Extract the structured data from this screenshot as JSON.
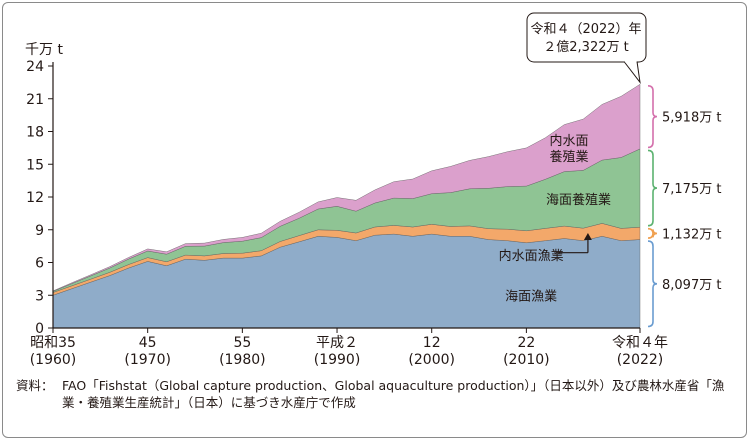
{
  "colors": {
    "marine_fishery": "#8facc9",
    "inland_fishery": "#f3a86a",
    "marine_aquaculture": "#8fc494",
    "inland_aquaculture": "#dba0cc",
    "brace_pink": "#d470ac",
    "brace_green": "#5cb270",
    "brace_orange": "#f0a050",
    "brace_blue": "#6a9cd0",
    "axis": "#231815"
  },
  "chart_data": {
    "type": "area",
    "stacked": true,
    "unit_label": "千万 t",
    "ylim": [
      0,
      24
    ],
    "yticks": [
      "0",
      "3",
      "6",
      "9",
      "12",
      "15",
      "18",
      "21",
      "24"
    ],
    "xlim": [
      1960,
      2022
    ],
    "xticks": [
      {
        "year": 1960,
        "era": "昭和35",
        "western": "(1960)"
      },
      {
        "year": 1970,
        "era": "45",
        "western": "(1970)"
      },
      {
        "year": 1980,
        "era": "55",
        "western": "(1980)"
      },
      {
        "year": 1990,
        "era": "平成２",
        "western": "(1990)"
      },
      {
        "year": 2000,
        "era": "12",
        "western": "(2000)"
      },
      {
        "year": 2010,
        "era": "22",
        "western": "(2010)"
      },
      {
        "year": 2022,
        "era": "令和４年",
        "western": "(2022)"
      }
    ],
    "years": [
      1960,
      1962,
      1964,
      1966,
      1968,
      1970,
      1972,
      1974,
      1976,
      1978,
      1980,
      1982,
      1984,
      1986,
      1988,
      1990,
      1992,
      1994,
      1996,
      1998,
      2000,
      2002,
      2004,
      2006,
      2008,
      2010,
      2012,
      2014,
      2016,
      2018,
      2020,
      2022
    ],
    "series": [
      {
        "name": "海面漁業",
        "key": "marine_fishery",
        "values": [
          3.0,
          3.6,
          4.2,
          4.8,
          5.5,
          6.1,
          5.7,
          6.3,
          6.2,
          6.4,
          6.4,
          6.6,
          7.4,
          7.9,
          8.4,
          8.3,
          8.0,
          8.5,
          8.6,
          8.4,
          8.6,
          8.4,
          8.4,
          8.1,
          8.0,
          7.8,
          8.0,
          8.2,
          8.0,
          8.4,
          8.0,
          8.1
        ]
      },
      {
        "name": "内水面漁業",
        "key": "inland_fishery",
        "values": [
          0.25,
          0.27,
          0.28,
          0.3,
          0.32,
          0.35,
          0.36,
          0.38,
          0.4,
          0.42,
          0.45,
          0.48,
          0.52,
          0.56,
          0.6,
          0.65,
          0.7,
          0.75,
          0.8,
          0.85,
          0.9,
          0.9,
          0.95,
          1.0,
          1.05,
          1.1,
          1.12,
          1.13,
          1.14,
          1.18,
          1.12,
          1.132
        ]
      },
      {
        "name": "海面養殖業",
        "key": "marine_aquaculture",
        "values": [
          0.1,
          0.2,
          0.3,
          0.4,
          0.5,
          0.6,
          0.7,
          0.8,
          0.9,
          1.0,
          1.1,
          1.2,
          1.4,
          1.6,
          1.9,
          2.2,
          2.0,
          2.2,
          2.5,
          2.6,
          2.8,
          3.1,
          3.4,
          3.7,
          3.9,
          4.1,
          4.5,
          5.0,
          5.3,
          5.8,
          6.5,
          7.175
        ]
      },
      {
        "name": "内水面養殖業",
        "key": "inland_aquaculture",
        "values": [
          0.05,
          0.08,
          0.1,
          0.12,
          0.15,
          0.2,
          0.22,
          0.25,
          0.28,
          0.3,
          0.35,
          0.4,
          0.45,
          0.55,
          0.65,
          0.8,
          1.0,
          1.2,
          1.5,
          1.8,
          2.1,
          2.4,
          2.6,
          2.9,
          3.2,
          3.5,
          3.8,
          4.3,
          4.7,
          5.1,
          5.6,
          5.918
        ]
      }
    ],
    "area_labels": [
      {
        "key": "inland_aquaculture",
        "lines": [
          "内水面",
          "養殖業"
        ]
      },
      {
        "key": "marine_aquaculture",
        "lines": [
          "海面養殖業"
        ]
      },
      {
        "key": "inland_fishery",
        "lines": [
          "内水面漁業"
        ]
      },
      {
        "key": "marine_fishery",
        "lines": [
          "海面漁業"
        ]
      }
    ],
    "right_labels": [
      {
        "key": "inland_aquaculture",
        "text": "5,918万 t"
      },
      {
        "key": "marine_aquaculture",
        "text": "7,175万 t"
      },
      {
        "key": "inland_fishery",
        "text": "1,132万 t"
      },
      {
        "key": "marine_fishery",
        "text": "8,097万 t"
      }
    ],
    "callout": {
      "lines": [
        "令和４（2022）年",
        "２億2,322万 t"
      ],
      "total": 22.322
    }
  },
  "source": {
    "prefix": "資料：",
    "text": "FAO「Fishstat（Global capture production、Global aquaculture production）」（日本以外）及び農林水産省「漁業・養殖業生産統計」（日本）に基づき水産庁で作成"
  }
}
